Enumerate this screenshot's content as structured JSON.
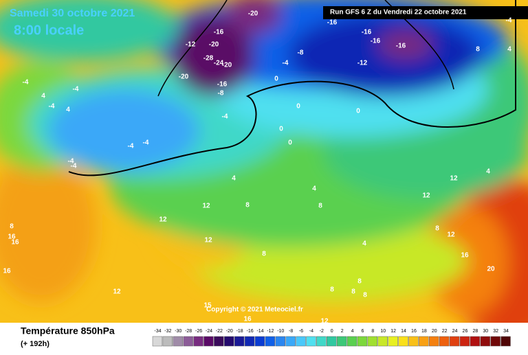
{
  "header": {
    "date": "Samedi 30 octobre 2021",
    "time": "8:00 locale",
    "run": "Run GFS 6 Z du Vendredi 22 octobre 2021",
    "copyright": "Copyright © 2021 Meteociel.fr"
  },
  "footer": {
    "title": "Température 850hPa",
    "lead": "(+ 192h)"
  },
  "scale": {
    "values": [
      -34,
      -32,
      -30,
      -28,
      -26,
      -24,
      -22,
      -20,
      -18,
      -16,
      -14,
      -12,
      -10,
      -8,
      -6,
      -4,
      -2,
      0,
      2,
      4,
      6,
      8,
      10,
      12,
      14,
      16,
      18,
      20,
      22,
      24,
      26,
      28,
      30,
      32,
      34
    ],
    "colors": [
      "#d8d8d8",
      "#bcbcbc",
      "#a08ca8",
      "#8c5c98",
      "#782c80",
      "#5a0a66",
      "#3a0a5a",
      "#240a6e",
      "#1a1a96",
      "#1028b4",
      "#0a3cd2",
      "#1060e8",
      "#2a86f0",
      "#3aa8f8",
      "#4ac8fa",
      "#50e0f0",
      "#40d8c8",
      "#30c8a0",
      "#3cc878",
      "#5ad050",
      "#7cd83c",
      "#a0e030",
      "#c8e828",
      "#e8f020",
      "#fae01a",
      "#f8c018",
      "#f8a014",
      "#f48010",
      "#ee600e",
      "#e04010",
      "#cc2410",
      "#b01010",
      "#900c0c",
      "#700808",
      "#500606"
    ]
  },
  "map_labels": [
    -20,
    -16,
    -12,
    -20,
    -28,
    -24,
    -20,
    -20,
    -16,
    -8,
    -16,
    -16,
    -16,
    -16,
    -8,
    -12,
    -4,
    0,
    -4,
    4,
    8,
    -4,
    -4,
    4,
    -4,
    4,
    -4,
    0,
    0,
    0,
    0,
    -4,
    -4,
    -4,
    -4,
    4,
    8,
    12,
    12,
    8,
    16,
    16,
    16,
    12,
    8,
    4,
    8,
    12,
    8,
    12,
    4,
    16,
    20,
    8,
    8,
    8,
    8,
    12,
    15,
    16,
    12,
    4,
    12
  ]
}
